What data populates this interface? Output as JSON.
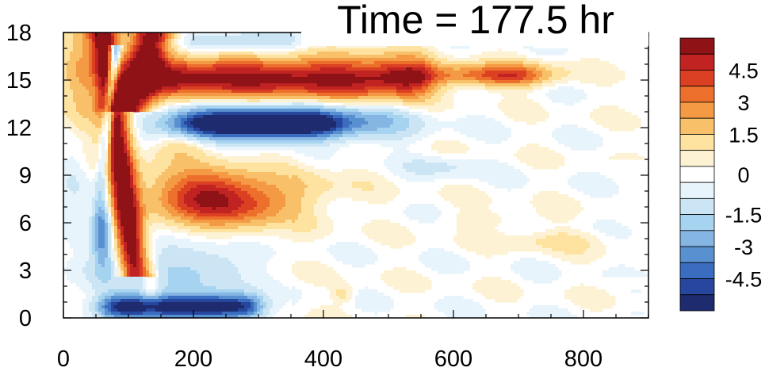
{
  "chart_data": {
    "type": "heatmap",
    "title": "Time = 177.5 hr",
    "xlabel": "",
    "ylabel": "",
    "xlim": [
      0,
      900
    ],
    "ylim": [
      0,
      18
    ],
    "x_ticks": [
      0,
      200,
      400,
      600,
      800
    ],
    "y_ticks": [
      0,
      3,
      6,
      9,
      12,
      15,
      18
    ],
    "grid": false,
    "colorbar": {
      "placement": "right",
      "levels": [
        -6,
        -5.25,
        -4.5,
        -3.75,
        -3,
        -2.25,
        -1.5,
        -0.75,
        -0.25,
        0.25,
        0.75,
        1.5,
        2.25,
        3,
        3.75,
        4.5,
        5.25,
        6
      ],
      "tick_values": [
        4.5,
        3,
        1.5,
        0,
        -1.5,
        -3,
        -4.5
      ],
      "tick_labels": [
        "4.5",
        "3",
        "1.5",
        "0",
        "-1.5",
        "-3",
        "-4.5"
      ],
      "colors": [
        "#1e2b6e",
        "#27479e",
        "#3a6cbf",
        "#5890d0",
        "#84b5e3",
        "#a6d3f0",
        "#cbe5f5",
        "#e8f4fb",
        "#ffffff",
        "#fdf3d4",
        "#fde2a0",
        "#f9c06a",
        "#f49a44",
        "#ec6f2c",
        "#dc4022",
        "#c02322",
        "#8f1216"
      ]
    },
    "features": [
      {
        "kind": "band",
        "sign": "positive",
        "x": [
          120,
          720
        ],
        "y_center": 15.0,
        "peak": 6.0
      },
      {
        "kind": "band",
        "sign": "negative",
        "x": [
          180,
          520
        ],
        "y_center": 12.2,
        "peak": -5.5
      },
      {
        "kind": "blob",
        "sign": "positive",
        "x_center": 210,
        "y_center": 7.5,
        "peak": 3.5
      },
      {
        "kind": "band",
        "sign": "negative",
        "x": [
          60,
          320
        ],
        "y_center": 0.8,
        "peak": -6.0
      },
      {
        "kind": "stripe",
        "sign": "positive",
        "x": [
          70,
          130
        ],
        "y": [
          3,
          18
        ],
        "peak": 6.0
      },
      {
        "kind": "stripe",
        "sign": "negative",
        "x": [
          50,
          75
        ],
        "y": [
          4,
          17
        ],
        "peak": -6.0
      }
    ]
  }
}
